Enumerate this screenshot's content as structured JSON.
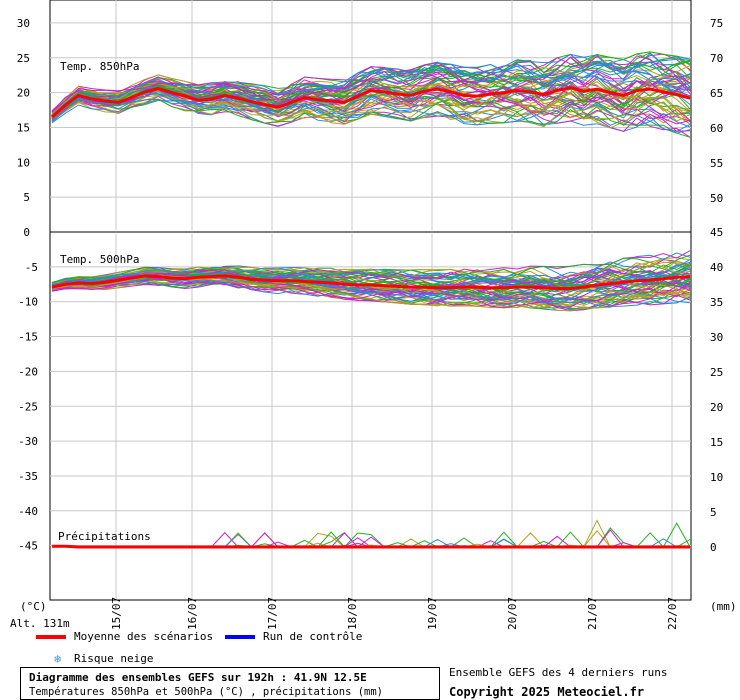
{
  "chart_data": {
    "type": "line",
    "x": [
      "15/07",
      "16/07",
      "17/07",
      "18/07",
      "19/07",
      "20/07",
      "21/07",
      "22/07"
    ],
    "xlabel_left": "(°C)",
    "xlabel_right": "(mm)",
    "altitude": "Alt. 131m",
    "panels": [
      {
        "name": "Temp. 850hPa",
        "left_axis": {
          "ticks": [
            "30",
            "25",
            "20",
            "15",
            "10",
            "5",
            "0"
          ],
          "range": [
            0,
            30
          ]
        },
        "right_axis": {
          "ticks": [
            "75",
            "70",
            "65",
            "60",
            "55",
            "50"
          ]
        },
        "mean_series": [
          16.5,
          18.2,
          19.6,
          19.1,
          18.8,
          18.6,
          19.3,
          20.1,
          20.6,
          20.0,
          19.5,
          18.9,
          19.1,
          19.6,
          19.2,
          18.7,
          18.3,
          17.9,
          18.6,
          19.3,
          19.0,
          18.8,
          18.6,
          19.5,
          20.3,
          20.1,
          19.8,
          19.6,
          20.2,
          20.5,
          20.1,
          19.6,
          19.5,
          19.8,
          20.0,
          20.3,
          20.1,
          19.7,
          20.3,
          20.7,
          20.2,
          20.5,
          20.0,
          19.6,
          20.3,
          20.5,
          20.1,
          19.7,
          19.2
        ]
      },
      {
        "name": "Temp. 500hPa",
        "left_axis": {
          "ticks": [
            "-5",
            "-10",
            "-15",
            "-20",
            "-25",
            "-30",
            "-35",
            "-40",
            "-45"
          ],
          "range": [
            -45,
            0
          ]
        },
        "right_axis": {
          "ticks": [
            "45",
            "40",
            "35",
            "30",
            "25",
            "20",
            "15",
            "10",
            "5",
            "0"
          ]
        },
        "mean_series": [
          -7.9,
          -7.5,
          -7.3,
          -7.4,
          -7.2,
          -6.9,
          -6.6,
          -6.3,
          -6.4,
          -6.6,
          -6.7,
          -6.5,
          -6.4,
          -6.3,
          -6.5,
          -6.8,
          -6.9,
          -7.0,
          -7.0,
          -7.1,
          -7.2,
          -7.3,
          -7.5,
          -7.6,
          -7.6,
          -7.7,
          -7.8,
          -7.9,
          -7.9,
          -8.0,
          -8.0,
          -7.9,
          -7.9,
          -8.0,
          -8.0,
          -7.9,
          -7.9,
          -8.0,
          -8.1,
          -8.1,
          -7.9,
          -7.6,
          -7.4,
          -7.2,
          -7.0,
          -6.9,
          -6.7,
          -6.5,
          -6.4
        ]
      },
      {
        "name": "Précipitations",
        "unit": "mm",
        "mean_series": [
          0.1,
          0.1,
          0,
          0,
          0,
          0,
          0,
          0,
          0,
          0,
          0,
          0,
          0,
          0,
          0,
          0,
          0,
          0,
          0,
          0,
          0,
          0,
          0,
          0,
          0,
          0,
          0,
          0,
          0,
          0,
          0,
          0,
          0,
          0,
          0,
          0,
          0,
          0,
          0,
          0,
          0,
          0,
          0,
          0,
          0,
          0,
          0,
          0,
          0
        ]
      }
    ],
    "legend": [
      {
        "label": "Moyenne des scénarios",
        "color": "#ff0000"
      },
      {
        "label": "Run de contrôle",
        "color": "#0000ff"
      },
      {
        "label": "Risque neige",
        "icon": "snowflake-icon",
        "color": "#3aa0e0"
      }
    ],
    "member_colors": [
      "#22b022",
      "#b8a020",
      "#cc22cc",
      "#2a8ad8"
    ],
    "grid": true
  },
  "footer": {
    "title": "Diagramme des ensembles GEFS sur 192h : 41.9N 12.5E",
    "subtitle": "Températures 850hPa et 500hPa (°C) , précipitations (mm)",
    "runs_note": "Ensemble GEFS des 4 derniers runs",
    "copyright": "Copyright 2025 Meteociel.fr"
  }
}
